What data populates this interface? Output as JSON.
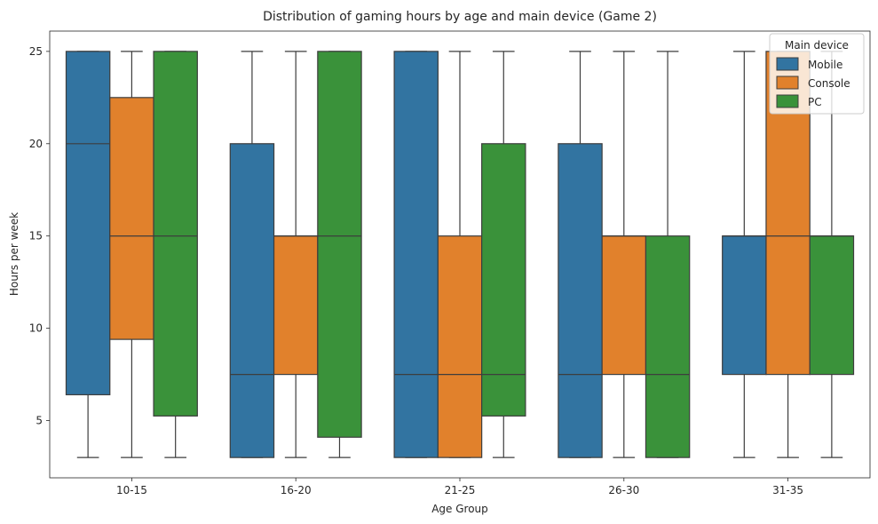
{
  "chart_data": {
    "type": "box",
    "title": "Distribution of gaming hours by age and main device (Game 2)",
    "xlabel": "Age Group",
    "ylabel": "Hours per week",
    "categories": [
      "10-15",
      "16-20",
      "21-25",
      "26-30",
      "31-35"
    ],
    "ylim": [
      1.9,
      26.1
    ],
    "yticks": [
      5,
      10,
      15,
      20,
      25
    ],
    "grid": false,
    "legend": {
      "title": "Main device",
      "placement": "top-right"
    },
    "series": [
      {
        "name": "Mobile",
        "color": "#3274a1",
        "boxes": [
          {
            "min": 3,
            "q1": 6.4,
            "median": 20,
            "q3": 25,
            "max": 25
          },
          {
            "min": 3,
            "q1": 3,
            "median": 7.5,
            "q3": 20,
            "max": 25
          },
          {
            "min": 3,
            "q1": 3,
            "median": 7.5,
            "q3": 25,
            "max": 25
          },
          {
            "min": 3,
            "q1": 3,
            "median": 7.5,
            "q3": 20,
            "max": 25
          },
          {
            "min": 3,
            "q1": 7.5,
            "median": 15,
            "q3": 15,
            "max": 25
          }
        ]
      },
      {
        "name": "Console",
        "color": "#e1812c",
        "boxes": [
          {
            "min": 3,
            "q1": 9.4,
            "median": 15,
            "q3": 22.5,
            "max": 25
          },
          {
            "min": 3,
            "q1": 7.5,
            "median": 15,
            "q3": 15,
            "max": 25
          },
          {
            "min": 3,
            "q1": 3,
            "median": 7.5,
            "q3": 15,
            "max": 25
          },
          {
            "min": 3,
            "q1": 7.5,
            "median": 15,
            "q3": 15,
            "max": 25
          },
          {
            "min": 3,
            "q1": 7.5,
            "median": 15,
            "q3": 25,
            "max": 25
          }
        ]
      },
      {
        "name": "PC",
        "color": "#3a923a",
        "boxes": [
          {
            "min": 3,
            "q1": 5.25,
            "median": 15,
            "q3": 25,
            "max": 25
          },
          {
            "min": 3,
            "q1": 4.1,
            "median": 15,
            "q3": 25,
            "max": 25
          },
          {
            "min": 3,
            "q1": 5.25,
            "median": 7.5,
            "q3": 20,
            "max": 25
          },
          {
            "min": 3,
            "q1": 3,
            "median": 7.5,
            "q3": 15,
            "max": 25
          },
          {
            "min": 3,
            "q1": 7.5,
            "median": 15,
            "q3": 15,
            "max": 25
          }
        ]
      }
    ]
  }
}
